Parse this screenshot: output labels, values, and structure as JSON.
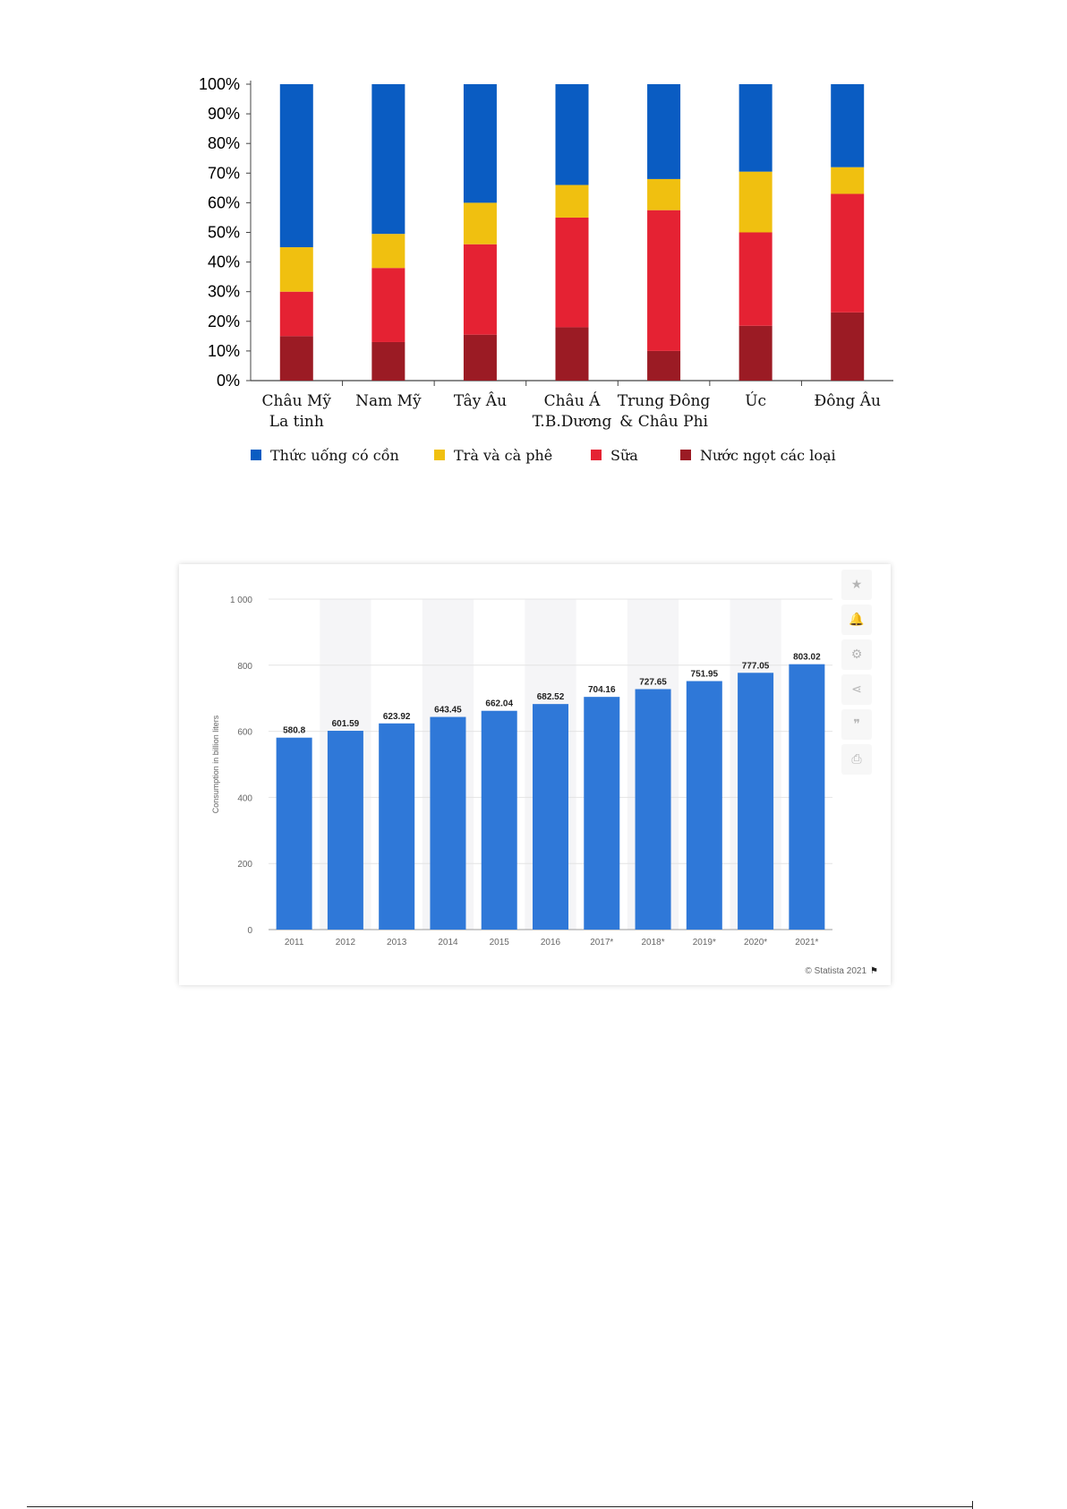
{
  "chart_data": [
    {
      "type": "bar",
      "stacked": true,
      "normalized": true,
      "categories": [
        [
          "Châu Mỹ",
          "La tinh"
        ],
        [
          "Nam Mỹ"
        ],
        [
          "Tây Âu"
        ],
        [
          "Châu Á",
          "T.B.Dương"
        ],
        [
          "Trung Đông",
          "& Châu Phi"
        ],
        [
          "Úc"
        ],
        [
          "Đông Âu"
        ]
      ],
      "series": [
        {
          "name": "Nước ngọt các loại",
          "color": "#9b1b24",
          "values": [
            15,
            13,
            15.5,
            18,
            10,
            18.5,
            23
          ]
        },
        {
          "name": "Sữa",
          "color": "#e52233",
          "values": [
            15,
            25,
            30.5,
            37,
            47.5,
            31.5,
            40
          ]
        },
        {
          "name": "Trà và cà phê",
          "color": "#f0c010",
          "values": [
            15,
            11.5,
            14,
            11,
            10.5,
            20.5,
            9
          ]
        },
        {
          "name": "Thức uống có cồn",
          "color": "#0a5cc2",
          "values": [
            55,
            50.5,
            40,
            34,
            32,
            29.5,
            28
          ]
        }
      ],
      "legend_order": [
        "Thức uống có cồn",
        "Trà và cà phê",
        "Sữa",
        "Nước ngọt các loại"
      ],
      "y_ticks": [
        "0%",
        "10%",
        "20%",
        "30%",
        "40%",
        "50%",
        "60%",
        "70%",
        "80%",
        "90%",
        "100%"
      ],
      "ylim": [
        0,
        100
      ],
      "legend_position": "bottom"
    },
    {
      "type": "bar",
      "categories": [
        "2011",
        "2012",
        "2013",
        "2014",
        "2015",
        "2016",
        "2017*",
        "2018*",
        "2019*",
        "2020*",
        "2021*"
      ],
      "values": [
        580.8,
        601.59,
        623.92,
        643.45,
        662.04,
        682.52,
        704.16,
        727.65,
        751.95,
        777.05,
        803.02
      ],
      "value_labels": [
        "580.8",
        "601.59",
        "623.92",
        "643.45",
        "662.04",
        "682.52",
        "704.16",
        "727.65",
        "751.95",
        "777.05",
        "803.02"
      ],
      "y_ticks": [
        "0",
        "200",
        "400",
        "600",
        "800",
        "1 000"
      ],
      "ylabel": "Consumption in billion liters",
      "ylim": [
        0,
        1000
      ],
      "bar_color": "#2f78d8",
      "grid": true
    }
  ],
  "toolbar": {
    "icons": [
      "star-icon",
      "bell-icon",
      "gear-icon",
      "share-icon",
      "quote-icon",
      "print-icon"
    ],
    "glyphs": [
      "★",
      "🔔",
      "⚙",
      "⋖",
      "❞",
      "⎙"
    ]
  },
  "credit": {
    "text": "© Statista 2021",
    "flag": "⚑"
  }
}
